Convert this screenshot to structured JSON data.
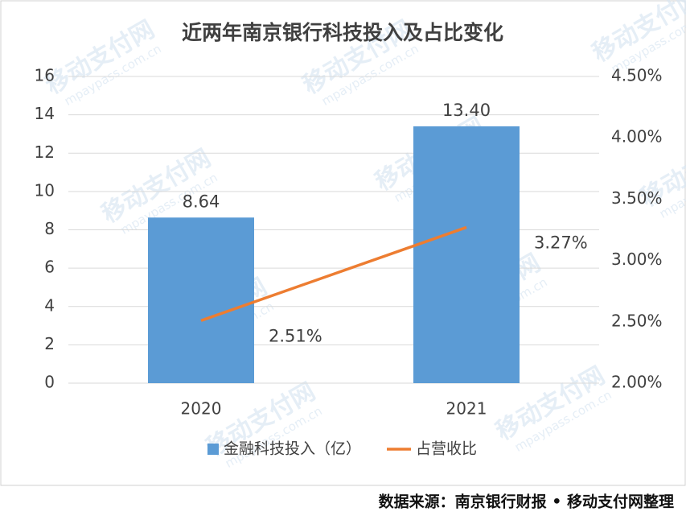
{
  "chart_data": {
    "type": "bar-line",
    "title": "近两年南京银行科技投入及占比变化",
    "categories": [
      "2020",
      "2021"
    ],
    "series": [
      {
        "name": "金融科技投入（亿）",
        "type": "bar",
        "color": "#5b9bd5",
        "values": [
          8.64,
          13.4
        ],
        "value_labels": [
          "8.64",
          "13.40"
        ]
      },
      {
        "name": "占营收比",
        "type": "line",
        "color": "#ed7d31",
        "axis": "y2",
        "values": [
          2.51,
          3.27
        ],
        "value_labels": [
          "2.51%",
          "3.27%"
        ]
      }
    ],
    "ylim": [
      0,
      16
    ],
    "yticks": [
      0,
      2,
      4,
      6,
      8,
      10,
      12,
      14,
      16
    ],
    "y2lim": [
      2,
      4.5
    ],
    "y2ticks": [
      {
        "value": 2,
        "label": "2.00%"
      },
      {
        "value": 2.5,
        "label": "2.50%"
      },
      {
        "value": 3,
        "label": "3.00%"
      },
      {
        "value": 3.5,
        "label": "3.50%"
      },
      {
        "value": 4,
        "label": "4.00%"
      },
      {
        "value": 4.5,
        "label": "4.50%"
      }
    ],
    "grid": true,
    "legend": "bottom",
    "source": "数据来源：南京银行财报 • 移动支付网整理",
    "watermark": "移动支付网",
    "watermark_url": "mpaypass.com.cn"
  }
}
